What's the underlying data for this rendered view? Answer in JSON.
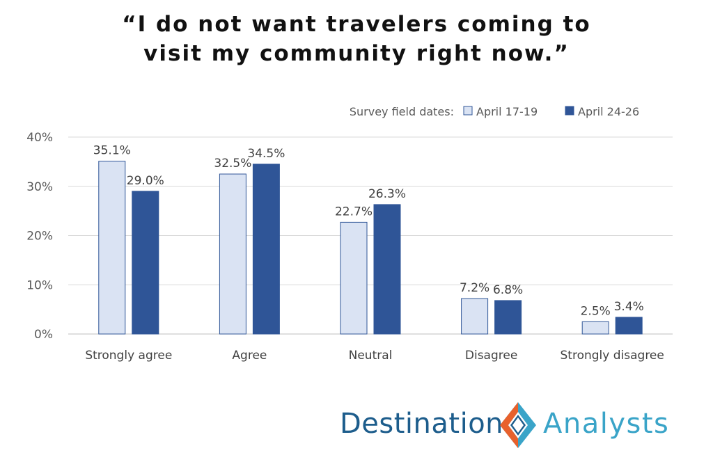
{
  "title_lines": [
    "“I do not want travelers coming to",
    "visit my community right now.”"
  ],
  "legend": {
    "prefix": "Survey field dates:"
  },
  "chart_data": {
    "type": "bar",
    "categories": [
      "Strongly agree",
      "Agree",
      "Neutral",
      "Disagree",
      "Strongly disagree"
    ],
    "series": [
      {
        "name": "April 17-19",
        "values": [
          35.1,
          32.5,
          22.7,
          7.2,
          2.5
        ],
        "labels": [
          "35.1%",
          "32.5%",
          "22.7%",
          "7.2%",
          "2.5%"
        ],
        "color": "#dae3f3",
        "stroke": "#2f5597"
      },
      {
        "name": "April 24-26",
        "values": [
          29.0,
          34.5,
          26.3,
          6.8,
          3.4
        ],
        "labels": [
          "29.0%",
          "34.5%",
          "26.3%",
          "6.8%",
          "3.4%"
        ],
        "color": "#2f5597",
        "stroke": "#2f5597"
      }
    ],
    "yticks": [
      "0%",
      "10%",
      "20%",
      "30%",
      "40%"
    ],
    "ylim": [
      0,
      40
    ],
    "grid": true,
    "legend_position": "top-right"
  },
  "logo": {
    "word1": "Destination",
    "word2": "Analysts",
    "colors": {
      "dark": "#1d5d8c",
      "light": "#3aa4c8",
      "orange": "#e8612c"
    }
  }
}
